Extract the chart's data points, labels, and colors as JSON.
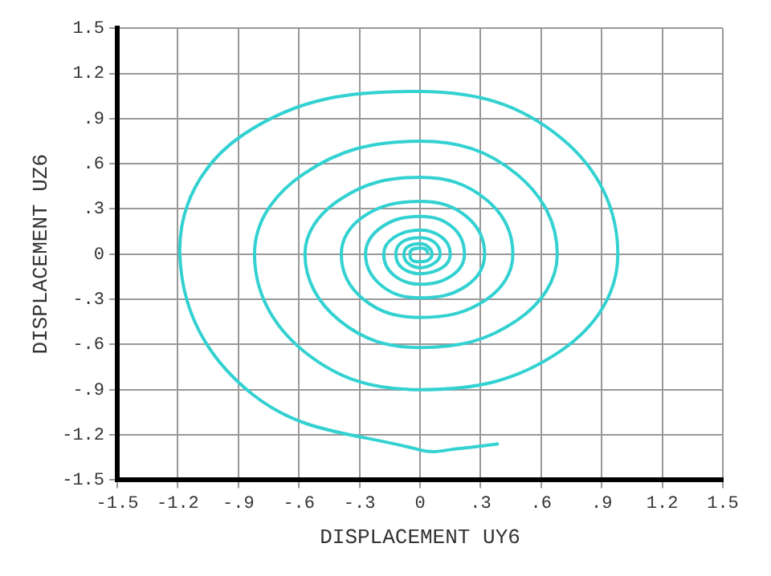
{
  "chart_data": {
    "type": "line",
    "xlabel": "DISPLACEMENT UY6",
    "ylabel": "DISPLACEMENT UZ6",
    "xlim": [
      -1.5,
      1.5
    ],
    "ylim": [
      -1.5,
      1.5
    ],
    "xticks": [
      {
        "value": -1.5,
        "label": "-1.5"
      },
      {
        "value": -1.2,
        "label": "-1.2"
      },
      {
        "value": -0.9,
        "label": "-.9"
      },
      {
        "value": -0.6,
        "label": "-.6"
      },
      {
        "value": -0.3,
        "label": "-.3"
      },
      0,
      {
        "value": 0.3,
        "label": ".3"
      },
      {
        "value": 0.6,
        "label": ".6"
      },
      {
        "value": 0.9,
        "label": ".9"
      },
      1.2,
      1.5
    ],
    "yticks": [
      {
        "value": -1.5,
        "label": "-1.5"
      },
      {
        "value": -1.2,
        "label": "-1.2"
      },
      {
        "value": -0.9,
        "label": "-.9"
      },
      {
        "value": -0.6,
        "label": "-.6"
      },
      {
        "value": -0.3,
        "label": "-.3"
      },
      0,
      {
        "value": 0.3,
        "label": ".3"
      },
      {
        "value": 0.6,
        "label": ".6"
      },
      {
        "value": 0.9,
        "label": ".9"
      },
      1.2,
      1.5
    ],
    "grid": true,
    "marker": "none",
    "line_style": "solid",
    "series": [
      {
        "color": "#33d1d1",
        "x": [
          0.04,
          0.03,
          0,
          -0.04,
          -0.05,
          -0.04,
          0,
          0.04,
          0.06,
          0.04,
          0,
          -0.06,
          -0.08,
          -0.06,
          0,
          0.07,
          0.1,
          0.07,
          0,
          -0.09,
          -0.12,
          -0.09,
          0,
          0.11,
          0.15,
          0.11,
          0,
          -0.13,
          -0.18,
          -0.13,
          0,
          0.16,
          0.22,
          0.16,
          0,
          -0.19,
          -0.27,
          -0.19,
          0,
          0.23,
          0.32,
          0.23,
          0,
          -0.28,
          -0.39,
          -0.28,
          0,
          0.33,
          0.46,
          0.33,
          0,
          -0.4,
          -0.57,
          -0.4,
          0,
          0.48,
          0.68,
          0.48,
          0,
          -0.58,
          -0.82,
          -0.58,
          0,
          0.7,
          0.98,
          0.7,
          0,
          -0.88,
          -1.19,
          -0.84,
          0,
          0.2,
          0.39
        ],
        "values": [
          0,
          0.03,
          0.04,
          0.03,
          0,
          -0.04,
          -0.05,
          -0.04,
          0,
          0.05,
          0.07,
          0.05,
          0,
          -0.06,
          -0.09,
          -0.06,
          0,
          0.08,
          0.11,
          0.08,
          0,
          -0.09,
          -0.13,
          -0.09,
          0,
          0.11,
          0.16,
          0.11,
          0,
          -0.14,
          -0.2,
          -0.14,
          0,
          0.18,
          0.25,
          0.18,
          0,
          -0.21,
          -0.29,
          -0.21,
          0,
          0.25,
          0.35,
          0.25,
          0,
          -0.3,
          -0.42,
          -0.3,
          0,
          0.36,
          0.51,
          0.36,
          0,
          -0.44,
          -0.62,
          -0.44,
          0,
          0.53,
          0.75,
          0.53,
          0,
          -0.64,
          -0.9,
          -0.64,
          0,
          0.77,
          1.08,
          0.79,
          0,
          -0.92,
          -1.3,
          -1.29,
          -1.26
        ]
      }
    ]
  }
}
